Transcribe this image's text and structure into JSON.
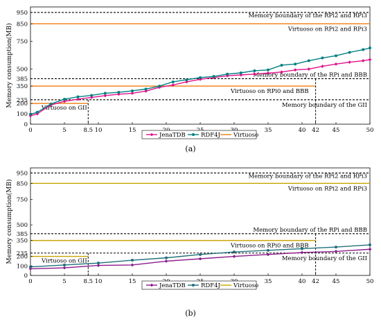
{
  "chart_data": [
    {
      "type": "line",
      "caption": "(a)",
      "ylabel": "Memory consumption(MB)",
      "xlim": [
        0,
        50
      ],
      "ylim": [
        0,
        1000
      ],
      "xticks": [
        0,
        5,
        8.5,
        10,
        15,
        20,
        25,
        30,
        35,
        40,
        42,
        45,
        50
      ],
      "yticks": [
        0,
        100,
        200,
        235,
        350,
        385,
        500,
        750,
        850,
        950
      ],
      "series": [
        {
          "name": "JenaTDB",
          "color": "#e0108a",
          "marker": "diamond",
          "x": [
            0,
            1,
            3,
            5,
            7,
            9,
            11,
            13,
            15,
            17,
            19,
            21,
            23,
            25,
            27,
            29,
            31,
            33,
            35,
            37,
            39,
            41,
            43,
            45,
            47,
            49,
            50
          ],
          "y": [
            80,
            100,
            185,
            220,
            240,
            255,
            270,
            282,
            290,
            308,
            340,
            355,
            370,
            382,
            398,
            420,
            430,
            440,
            452,
            465,
            490,
            500,
            525,
            545,
            562,
            575,
            585
          ]
        },
        {
          "name": "RDF4J",
          "color": "#008080",
          "marker": "circle",
          "x": [
            0,
            1,
            3,
            5,
            7,
            9,
            11,
            13,
            15,
            17,
            19,
            21,
            23,
            25,
            27,
            29,
            31,
            33,
            35,
            37,
            39,
            41,
            43,
            45,
            47,
            49,
            50
          ],
          "y": [
            95,
            115,
            195,
            240,
            260,
            272,
            290,
            298,
            310,
            325,
            350,
            370,
            380,
            398,
            412,
            440,
            455,
            480,
            490,
            535,
            545,
            575,
            600,
            620,
            650,
            675,
            690
          ]
        }
      ],
      "reference_lines": [
        {
          "label": "Memory boundary of the RPi2 and RPi3",
          "y": 950,
          "style": "dashed",
          "color": "#000000",
          "x_end": 50
        },
        {
          "label": "Virtuoso on RPi2 and RPi3",
          "y": 850,
          "style": "solid",
          "color": "#f07b0c",
          "x_end": 50
        },
        {
          "label": "Memory boundary of the RPi and BBB",
          "y": 385,
          "style": "dashed",
          "color": "#000000",
          "x_end": 50
        },
        {
          "label": "Virtuoso on RPi0 and BBB",
          "y": 350,
          "style": "solid",
          "color": "#f07b0c",
          "x_end": 42
        },
        {
          "label": "Memory boundary of the GII",
          "y": 235,
          "style": "dashed",
          "color": "#000000",
          "x_end": 50
        },
        {
          "label": "Virtuoso on GII",
          "y": 200,
          "style": "solid",
          "color": "#f07b0c",
          "x_end": 8.5
        }
      ],
      "vertical_markers": [
        8.5,
        42
      ],
      "legend": [
        {
          "label": "JenaTDB",
          "color": "#e0108a",
          "marker": "diamond"
        },
        {
          "label": "RDF4J",
          "color": "#008080",
          "marker": "circle"
        },
        {
          "label": "Virtuoso",
          "color": "#f07b0c",
          "marker": "none"
        }
      ]
    },
    {
      "type": "line",
      "caption": "(b)",
      "ylabel": "Memory consumption(MB)",
      "xlim": [
        0,
        50
      ],
      "ylim": [
        0,
        1000
      ],
      "xticks": [
        0,
        5,
        8.5,
        10,
        15,
        20,
        25,
        30,
        35,
        40,
        42,
        45,
        50
      ],
      "yticks": [
        0,
        100,
        200,
        235,
        350,
        385,
        500,
        750,
        850,
        950
      ],
      "series": [
        {
          "name": "JenaTDB",
          "color": "#8b1a8b",
          "marker": "diamond",
          "x": [
            0,
            5,
            10,
            15,
            20,
            25,
            30,
            35,
            40,
            45,
            50
          ],
          "y": [
            70,
            80,
            105,
            110,
            150,
            175,
            200,
            220,
            240,
            250,
            270
          ]
        },
        {
          "name": "RDF4J",
          "color": "#1f6f7a",
          "marker": "circle",
          "x": [
            0,
            5,
            10,
            15,
            20,
            25,
            30,
            35,
            40,
            45,
            50
          ],
          "y": [
            90,
            110,
            130,
            160,
            185,
            220,
            245,
            260,
            275,
            290,
            310
          ]
        }
      ],
      "reference_lines": [
        {
          "label": "Memory boundary of the RPi2 and RPi3",
          "y": 950,
          "style": "dashed",
          "color": "#000000",
          "x_end": 50
        },
        {
          "label": "Virtuoso on RPi2 and RPi3",
          "y": 850,
          "style": "solid",
          "color": "#c8a400",
          "x_end": 50
        },
        {
          "label": "Memory boundary of the RPi and BBB",
          "y": 385,
          "style": "dashed",
          "color": "#000000",
          "x_end": 50
        },
        {
          "label": "Virtuoso on RPi0 and BBB",
          "y": 350,
          "style": "solid",
          "color": "#c8a400",
          "x_end": 42
        },
        {
          "label": "Memory boundary of the GII",
          "y": 235,
          "style": "dashed",
          "color": "#000000",
          "x_end": 50
        },
        {
          "label": "Virtuoso on GII",
          "y": 200,
          "style": "solid",
          "color": "#c8a400",
          "x_end": 8.5
        }
      ],
      "vertical_markers": [
        8.5,
        42
      ],
      "legend": [
        {
          "label": "JenaTDB",
          "color": "#8b1a8b",
          "marker": "diamond"
        },
        {
          "label": "RDF4J",
          "color": "#1f6f7a",
          "marker": "circle"
        },
        {
          "label": "Virtuoso",
          "color": "#c8a400",
          "marker": "none"
        }
      ]
    }
  ]
}
